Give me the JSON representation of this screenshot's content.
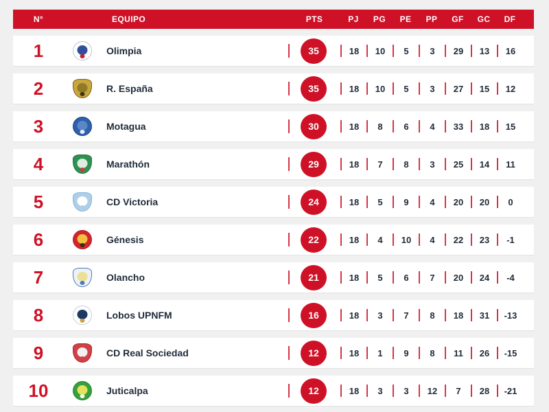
{
  "page": {
    "background": "#f0f0f1",
    "accent_red": "#ce1126",
    "text_dark": "#1e2a38"
  },
  "table": {
    "headers": {
      "rank": "N°",
      "team": "EQUIPO",
      "pts": "PTS",
      "stats": [
        "PJ",
        "PG",
        "PE",
        "PP",
        "GF",
        "GC",
        "DF"
      ]
    },
    "rows": [
      {
        "rank": "1",
        "team": "Olimpia",
        "pts": "35",
        "stats": [
          "18",
          "10",
          "5",
          "3",
          "29",
          "13",
          "16"
        ],
        "logo": {
          "icon": "olimpia-crest-icon",
          "shape": "circle",
          "colors": [
            "#ffffff",
            "#b7c3d4",
            "#30509e",
            "#cf1b2b"
          ]
        }
      },
      {
        "rank": "2",
        "team": "R. España",
        "pts": "35",
        "stats": [
          "18",
          "10",
          "5",
          "3",
          "27",
          "15",
          "12"
        ],
        "logo": {
          "icon": "real-espana-crest-icon",
          "shape": "shield",
          "colors": [
            "#c9a63d",
            "#7a621c",
            "#8f7a26",
            "#41350c"
          ]
        }
      },
      {
        "rank": "3",
        "team": "Motagua",
        "pts": "30",
        "stats": [
          "18",
          "8",
          "6",
          "4",
          "33",
          "18",
          "15"
        ],
        "logo": {
          "icon": "motagua-crest-icon",
          "shape": "circle",
          "colors": [
            "#2f5fae",
            "#1c4185",
            "#5c87c6",
            "#e8eef6"
          ]
        }
      },
      {
        "rank": "4",
        "team": "Marathón",
        "pts": "29",
        "stats": [
          "18",
          "7",
          "8",
          "3",
          "25",
          "14",
          "11"
        ],
        "logo": {
          "icon": "marathon-crest-icon",
          "shape": "shield",
          "colors": [
            "#2e9152",
            "#20703c",
            "#ddeede",
            "#cf3b3b"
          ]
        }
      },
      {
        "rank": "5",
        "team": "CD Victoria",
        "pts": "24",
        "stats": [
          "18",
          "5",
          "9",
          "4",
          "20",
          "20",
          "0"
        ],
        "logo": {
          "icon": "cd-victoria-crest-icon",
          "shape": "shield",
          "colors": [
            "#aecfe9",
            "#85b4da",
            "#ffffff",
            "#aecfe9"
          ]
        }
      },
      {
        "rank": "6",
        "team": "Génesis",
        "pts": "22",
        "stats": [
          "18",
          "4",
          "10",
          "4",
          "22",
          "23",
          "-1"
        ],
        "logo": {
          "icon": "genesis-crest-icon",
          "shape": "circle",
          "colors": [
            "#d2262c",
            "#b01d22",
            "#eec23f",
            "#3a2c17"
          ]
        }
      },
      {
        "rank": "7",
        "team": "Olancho",
        "pts": "21",
        "stats": [
          "18",
          "5",
          "6",
          "7",
          "20",
          "24",
          "-4"
        ],
        "logo": {
          "icon": "olancho-crest-icon",
          "shape": "shield",
          "colors": [
            "#eef2f7",
            "#4a79b8",
            "#ecdf96",
            "#4a79b8"
          ]
        }
      },
      {
        "rank": "8",
        "team": "Lobos UPNFM",
        "pts": "16",
        "stats": [
          "18",
          "3",
          "7",
          "8",
          "18",
          "31",
          "-13"
        ],
        "logo": {
          "icon": "lobos-upnfm-crest-icon",
          "shape": "circle",
          "colors": [
            "#ffffff",
            "#c4cedb",
            "#1d3a63",
            "#caa23e"
          ]
        }
      },
      {
        "rank": "9",
        "team": "CD Real Sociedad",
        "pts": "12",
        "stats": [
          "18",
          "1",
          "9",
          "8",
          "11",
          "26",
          "-15"
        ],
        "logo": {
          "icon": "real-sociedad-crest-icon",
          "shape": "shield",
          "colors": [
            "#d14046",
            "#aa272d",
            "#f1f1f1",
            "#d14046"
          ]
        }
      },
      {
        "rank": "10",
        "team": "Juticalpa",
        "pts": "12",
        "stats": [
          "18",
          "3",
          "3",
          "12",
          "7",
          "28",
          "-21"
        ],
        "logo": {
          "icon": "juticalpa-crest-icon",
          "shape": "circle",
          "colors": [
            "#35a03c",
            "#26802c",
            "#e5e25b",
            "#f6f6ef"
          ]
        }
      }
    ]
  }
}
